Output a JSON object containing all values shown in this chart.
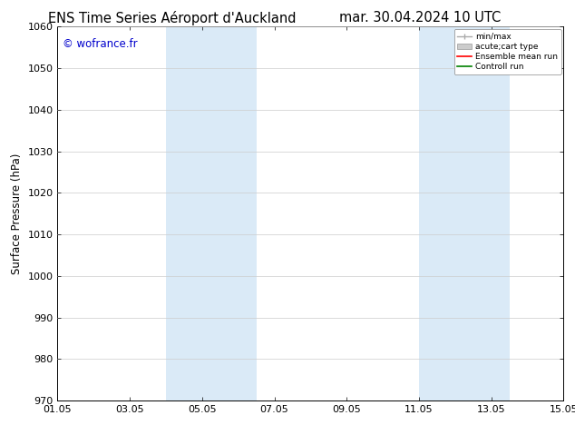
{
  "title_left": "ENS Time Series Aéroport d'Auckland",
  "title_right": "mar. 30.04.2024 10 UTC",
  "ylabel": "Surface Pressure (hPa)",
  "ylim": [
    970,
    1060
  ],
  "yticks": [
    970,
    980,
    990,
    1000,
    1010,
    1020,
    1030,
    1040,
    1050,
    1060
  ],
  "xlim_start": 0,
  "xlim_end": 14,
  "xtick_labels": [
    "01.05",
    "03.05",
    "05.05",
    "07.05",
    "09.05",
    "11.05",
    "13.05",
    "15.05"
  ],
  "xtick_positions": [
    0,
    2,
    4,
    6,
    8,
    10,
    12,
    14
  ],
  "shaded_bands": [
    {
      "x_start": 3.0,
      "x_end": 5.5
    },
    {
      "x_start": 10.0,
      "x_end": 12.5
    }
  ],
  "shaded_color": "#daeaf7",
  "watermark_text": "© wofrance.fr",
  "watermark_color": "#0000cc",
  "background_color": "#ffffff",
  "grid_color": "#cccccc",
  "title_fontsize": 10.5,
  "axis_fontsize": 8.5,
  "tick_fontsize": 8
}
